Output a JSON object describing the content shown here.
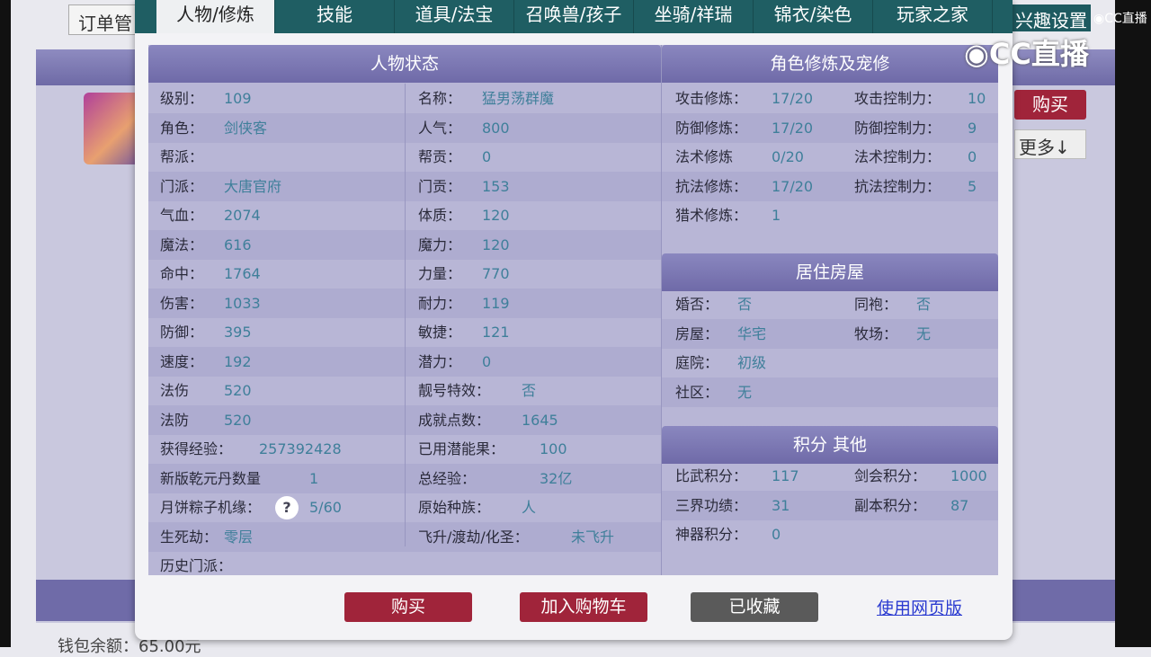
{
  "background": {
    "order_label": "订单管",
    "buy": "购买",
    "more": "更多↓",
    "interest": "兴趣设置",
    "wallet": "钱包余额：65.00元"
  },
  "watermark": {
    "logo": "CC直播",
    "small": "CC直播"
  },
  "tabs": [
    "人物/修炼",
    "技能",
    "道具/法宝",
    "召唤兽/孩子",
    "坐骑/祥瑞",
    "锦衣/染色",
    "玩家之家"
  ],
  "status": {
    "title": "人物状态",
    "left": [
      [
        "级别：",
        "109"
      ],
      [
        "角色：",
        "剑侠客"
      ],
      [
        "帮派：",
        ""
      ],
      [
        "门派：",
        "大唐官府"
      ],
      [
        "气血：",
        "2074"
      ],
      [
        "魔法：",
        "616"
      ],
      [
        "命中：",
        "1764"
      ],
      [
        "伤害：",
        "1033"
      ],
      [
        "防御：",
        "395"
      ],
      [
        "速度：",
        "192"
      ],
      [
        "法伤",
        "520"
      ],
      [
        "法防",
        "520"
      ],
      [
        "获得经验：",
        "257392428"
      ],
      [
        "新版乾元丹数量",
        "1"
      ],
      [
        "月饼粽子机缘：",
        "5/60"
      ],
      [
        "生死劫：",
        "零层"
      ],
      [
        "历史门派：",
        ""
      ]
    ],
    "right": [
      [
        "名称：",
        "猛男荡群魔"
      ],
      [
        "人气：",
        "800"
      ],
      [
        "帮贡：",
        "0"
      ],
      [
        "门贡：",
        "153"
      ],
      [
        "体质：",
        "120"
      ],
      [
        "魔力：",
        "120"
      ],
      [
        "力量：",
        "770"
      ],
      [
        "耐力：",
        "119"
      ],
      [
        "敏捷：",
        "121"
      ],
      [
        "潜力：",
        "0"
      ],
      [
        "靓号特效：",
        "否"
      ],
      [
        "成就点数：",
        "1645"
      ],
      [
        "已用潜能果：",
        "100"
      ],
      [
        "总经验：",
        "32亿"
      ],
      [
        "原始种族：",
        "人"
      ],
      [
        "飞升/渡劫/化圣：",
        "未飞升"
      ]
    ],
    "help_icon": "?"
  },
  "cultivation": {
    "title": "角色修炼及宠修",
    "rows": [
      [
        "攻击修炼：",
        "17/20",
        "攻击控制力：",
        "10"
      ],
      [
        "防御修炼：",
        "17/20",
        "防御控制力：",
        "9"
      ],
      [
        "法术修炼",
        "0/20",
        "法术控制力：",
        "0"
      ],
      [
        "抗法修炼：",
        "17/20",
        "抗法控制力：",
        "5"
      ],
      [
        "猎术修炼：",
        "1",
        "",
        ""
      ]
    ]
  },
  "house": {
    "title": "居住房屋",
    "rows": [
      [
        "婚否：",
        "否",
        "同袍：",
        "否"
      ],
      [
        "房屋：",
        "华宅",
        "牧场：",
        "无"
      ],
      [
        "庭院：",
        "初级",
        "",
        ""
      ],
      [
        "社区：",
        "无",
        "",
        ""
      ]
    ]
  },
  "points": {
    "title": "积分 其他",
    "rows": [
      [
        "比武积分：",
        "117",
        "剑会积分：",
        "1000"
      ],
      [
        "三界功绩：",
        "31",
        "副本积分：",
        "87"
      ],
      [
        "神器积分：",
        "0",
        "",
        ""
      ]
    ]
  },
  "actions": {
    "buy": "购买",
    "add_cart": "加入购物车",
    "favorited": "已收藏",
    "web_version": "使用网页版"
  },
  "colors": {
    "tab_bar": "#1f5e63",
    "header": "#7a77b2",
    "buy": "#a0243a",
    "favorited": "#5a5a5a",
    "value": "#3f7f9a"
  }
}
